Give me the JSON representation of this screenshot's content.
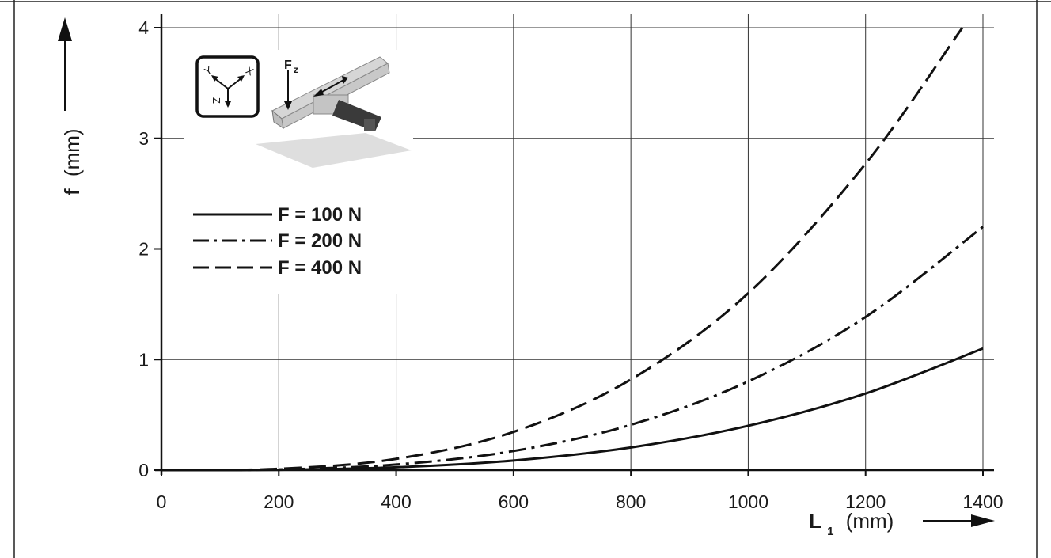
{
  "chart_data": {
    "type": "line",
    "xlabel": {
      "symbol": "L",
      "subscript": "1",
      "unit": "(mm)"
    },
    "ylabel": {
      "symbol": "f",
      "unit": "(mm)"
    },
    "xlim": [
      0,
      1400
    ],
    "ylim": [
      0,
      4
    ],
    "xticks": [
      "0",
      "200",
      "400",
      "600",
      "800",
      "1000",
      "1200",
      "1400"
    ],
    "yticks": [
      "0",
      "1",
      "2",
      "3",
      "4"
    ],
    "grid": true,
    "legend_position": "top-left",
    "series": [
      {
        "name": "F = 100 N",
        "style": "solid",
        "x": [
          0,
          200,
          400,
          600,
          800,
          1000,
          1200,
          1400
        ],
        "y": [
          0,
          0.003,
          0.026,
          0.087,
          0.205,
          0.401,
          0.693,
          1.1
        ]
      },
      {
        "name": "F = 200 N",
        "style": "dash-dot",
        "x": [
          0,
          200,
          400,
          600,
          800,
          1000,
          1200,
          1400
        ],
        "y": [
          0,
          0.006,
          0.051,
          0.173,
          0.41,
          0.802,
          1.385,
          2.2
        ]
      },
      {
        "name": "F = 400 N",
        "style": "dashed",
        "x": [
          0,
          200,
          400,
          600,
          800,
          1000,
          1200,
          1365
        ],
        "y": [
          0,
          0.012,
          0.102,
          0.346,
          0.82,
          1.6,
          2.77,
          4.0
        ]
      }
    ],
    "inset": {
      "axes_labels": [
        "Y",
        "X",
        "Z"
      ],
      "force_label": "F",
      "force_subscript": "z"
    }
  }
}
